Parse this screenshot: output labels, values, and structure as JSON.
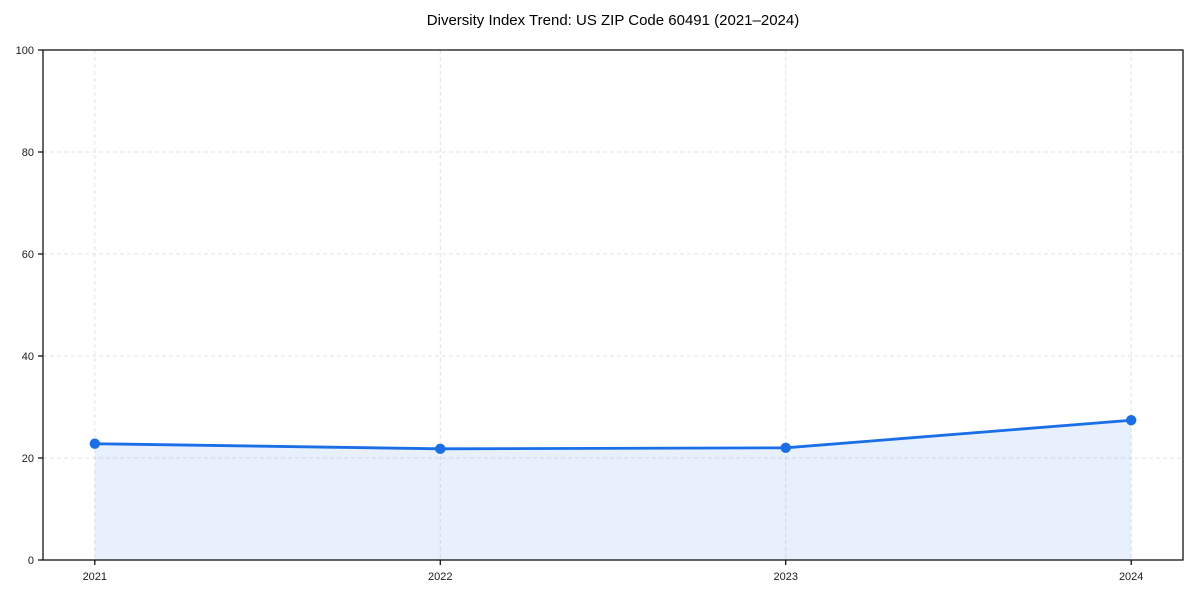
{
  "chart_data": {
    "type": "line",
    "title": "Diversity Index Trend: US ZIP Code 60491 (2021–2024)",
    "x": [
      2021,
      2022,
      2023,
      2024
    ],
    "series": [
      {
        "name": "Diversity Index",
        "values": [
          22.8,
          21.8,
          22.0,
          27.4
        ]
      }
    ],
    "xlabel": "",
    "ylabel": "",
    "xlim": [
      2020.85,
      2024.15
    ],
    "ylim": [
      0,
      100
    ],
    "xticks": {
      "values": [
        2021,
        2022,
        2023,
        2024
      ],
      "labels": [
        "2021",
        "2022",
        "2023",
        "2024"
      ]
    },
    "yticks": {
      "values": [
        0,
        20,
        40,
        60,
        80,
        100
      ],
      "labels": [
        "0",
        "20",
        "40",
        "60",
        "80",
        "100"
      ]
    },
    "grid": {
      "visible": true,
      "style": "dashed"
    },
    "legend": {
      "visible": false
    },
    "area_fill": true,
    "markers": true,
    "colors": {
      "line": "#1a6fe8",
      "marker": "#1a6fe8",
      "area_fill": "rgba(26, 111, 232, 0.10)",
      "gridline": "#e2e2e2",
      "spine": "#000000",
      "tick": "#000000",
      "tick_label": "#1c1c1c",
      "title": "#000000",
      "background": "#ffffff"
    }
  }
}
